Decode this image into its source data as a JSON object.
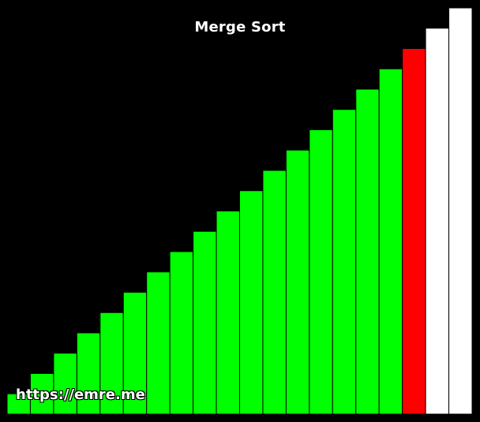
{
  "title": "Merge Sort",
  "watermark": "https://emre.me",
  "colors": {
    "background": "#000000",
    "sorted": "#00ff00",
    "active": "#ff0000",
    "unsorted": "#ffffff"
  },
  "chart_data": {
    "type": "bar",
    "values": [
      1,
      2,
      3,
      4,
      5,
      6,
      7,
      8,
      9,
      10,
      11,
      12,
      13,
      14,
      15,
      16,
      17,
      18,
      19,
      20
    ],
    "states": [
      "sorted",
      "sorted",
      "sorted",
      "sorted",
      "sorted",
      "sorted",
      "sorted",
      "sorted",
      "sorted",
      "sorted",
      "sorted",
      "sorted",
      "sorted",
      "sorted",
      "sorted",
      "sorted",
      "sorted",
      "active",
      "unsorted",
      "unsorted"
    ],
    "ylim": [
      0,
      20
    ],
    "grid": false
  }
}
